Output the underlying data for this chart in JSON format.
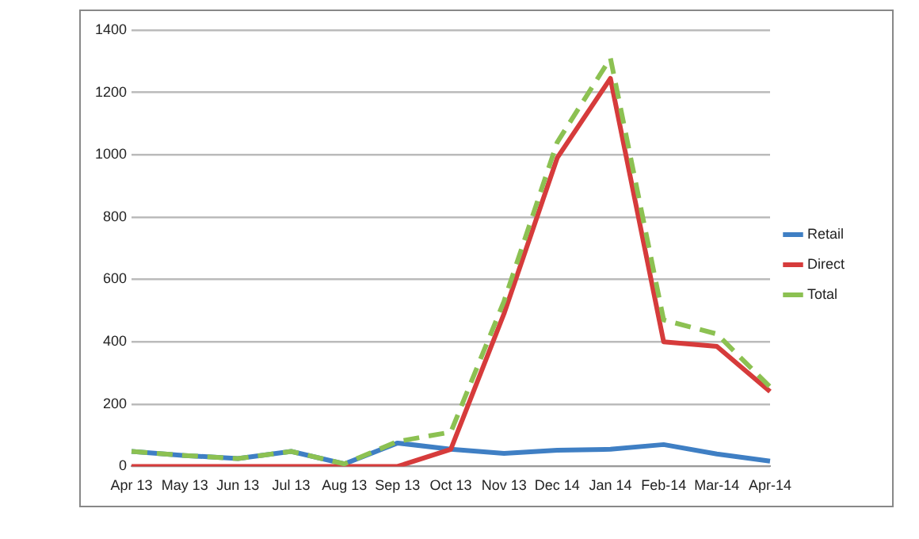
{
  "chart_data": {
    "type": "line",
    "categories": [
      "Apr 13",
      "May 13",
      "Jun 13",
      "Jul 13",
      "Aug 13",
      "Sep 13",
      "Oct 13",
      "Nov 13",
      "Dec 14",
      "Jan 14",
      "Feb-14",
      "Mar-14",
      "Apr-14"
    ],
    "series": [
      {
        "name": "Retail",
        "color": "#3f7fc4",
        "values": [
          48,
          35,
          25,
          48,
          8,
          75,
          55,
          42,
          52,
          55,
          70,
          40,
          17
        ]
      },
      {
        "name": "Direct",
        "color": "#d63b3b",
        "values": [
          0,
          0,
          0,
          0,
          0,
          0,
          55,
          490,
          990,
          1245,
          400,
          385,
          240
        ]
      },
      {
        "name": "Total",
        "color": "#8cc152",
        "values": [
          48,
          35,
          25,
          48,
          8,
          80,
          110,
          530,
          1040,
          1310,
          470,
          425,
          255
        ],
        "line_style": "dashed"
      }
    ],
    "ylim": [
      0,
      1400
    ],
    "yticks": [
      0,
      200,
      400,
      600,
      800,
      1000,
      1200,
      1400
    ],
    "grid": "y",
    "legend": "right",
    "marker": "none",
    "line_style": "solid"
  }
}
